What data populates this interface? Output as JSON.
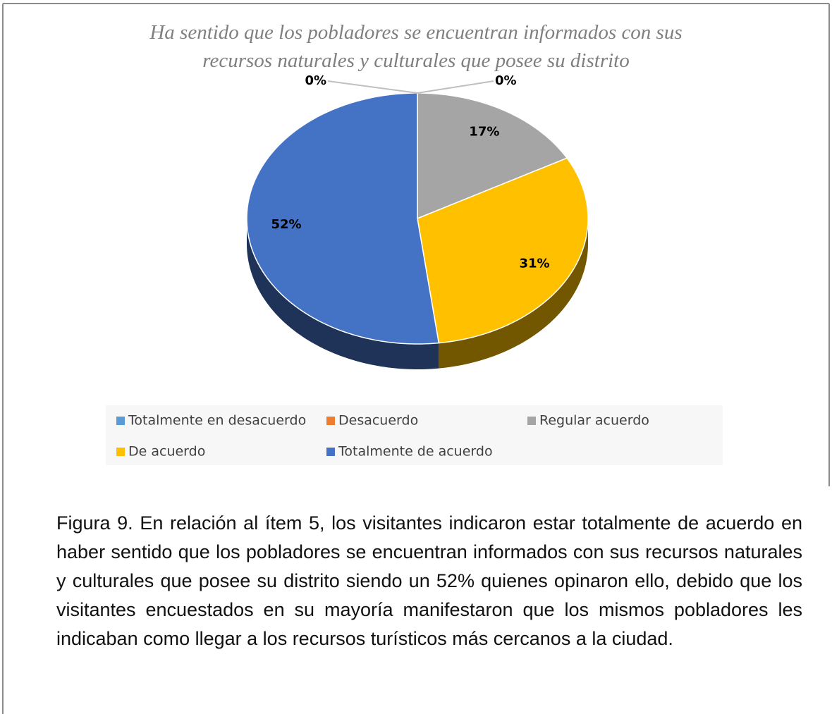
{
  "chart_data": {
    "type": "pie",
    "title": "Ha sentido que los pobladores se encuentran informados con sus recursos naturales y culturales que posee su distrito",
    "categories": [
      "Totalmente en desacuerdo",
      "Desacuerdo",
      "Regular acuerdo",
      "De acuerdo",
      "Totalmente de acuerdo"
    ],
    "values": [
      0,
      0,
      17,
      31,
      52
    ],
    "value_labels": [
      "0%",
      "0%",
      "17%",
      "31%",
      "52%"
    ],
    "colors": [
      "#5b9bd5",
      "#ed7d31",
      "#a5a5a5",
      "#ffc000",
      "#4472c4"
    ],
    "legend": "bottom"
  },
  "caption": "Figura 9. En relación al ítem 5, los visitantes indicaron estar totalmente de acuerdo en haber sentido que los pobladores se encuentran informados con sus recursos naturales y culturales que posee su distrito siendo un 52% quienes opinaron ello, debido que los visitantes encuestados en su mayoría manifestaron que los mismos pobladores les indicaban como llegar a los recursos turísticos más cercanos a la ciudad."
}
